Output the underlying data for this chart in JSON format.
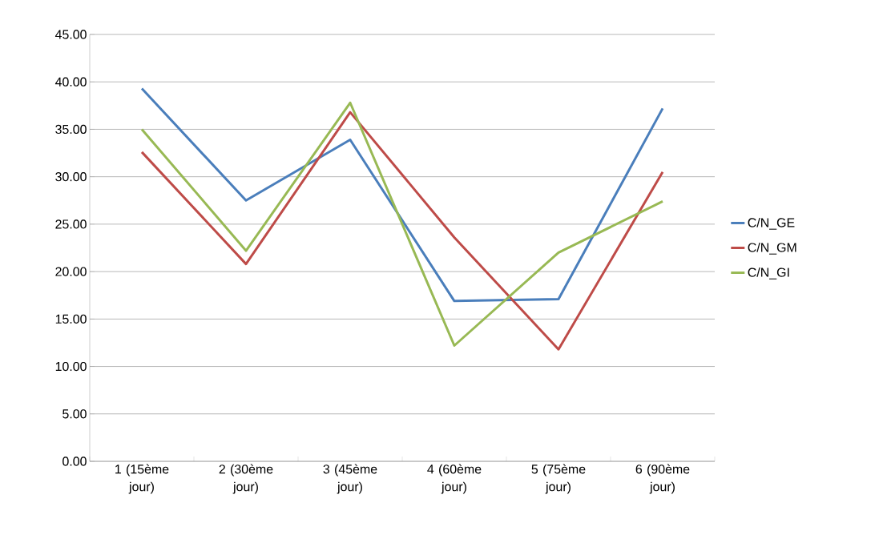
{
  "chart_data": {
    "type": "line",
    "categories": [
      "1 (15ème jour)",
      "2 (30ème jour)",
      "3 (45ème jour)",
      "4 (60ème jour)",
      "5 (75ème jour)",
      "6 (90ème jour)"
    ],
    "series": [
      {
        "name": "C/N_GE",
        "color": "#4a7ebb",
        "values": [
          39.3,
          27.5,
          33.9,
          16.9,
          17.1,
          37.2
        ]
      },
      {
        "name": "C/N_GM",
        "color": "#be4b48",
        "values": [
          32.6,
          20.8,
          36.8,
          23.6,
          11.8,
          30.5
        ]
      },
      {
        "name": "C/N_GI",
        "color": "#98b954",
        "values": [
          35.0,
          22.2,
          37.8,
          12.2,
          22.0,
          27.4
        ]
      }
    ],
    "ylim": [
      0,
      45
    ],
    "yticks": [
      {
        "value": 0,
        "label": "0.00"
      },
      {
        "value": 5,
        "label": "5.00"
      },
      {
        "value": 10,
        "label": "10.00"
      },
      {
        "value": 15,
        "label": "15.00"
      },
      {
        "value": 20,
        "label": "20.00"
      },
      {
        "value": 25,
        "label": "25.00"
      },
      {
        "value": 30,
        "label": "30.00"
      },
      {
        "value": 35,
        "label": "35.00"
      },
      {
        "value": 40,
        "label": "40.00"
      },
      {
        "value": 45,
        "label": "45.00"
      }
    ],
    "grid": "y",
    "legend": "right",
    "marker": "none",
    "line_style": "solid"
  }
}
